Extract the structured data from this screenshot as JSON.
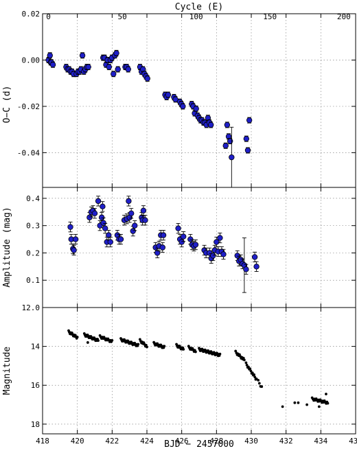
{
  "chart_data": [
    {
      "type": "scatter",
      "panel": "top",
      "ylabel": "O−C (d)",
      "top_axis_label": "Cycle (E)",
      "top_ticks": [
        0,
        50,
        100,
        150,
        200
      ],
      "top_xlim": [
        -4,
        208
      ],
      "ylim": [
        -0.055,
        0.02
      ],
      "yticks": [
        0.02,
        0.0,
        -0.02,
        -0.04
      ],
      "ytick_labels": [
        "0.02",
        "0.00",
        "-0.02",
        "-0.04"
      ],
      "grid": true,
      "marker_color": "#1f1fc8",
      "points": [
        {
          "x": 0,
          "y": 0.0
        },
        {
          "x": 1,
          "y": 0.002
        },
        {
          "x": 1.5,
          "y": -0.001
        },
        {
          "x": 2,
          "y": -0.001
        },
        {
          "x": 3,
          "y": -0.002
        },
        {
          "x": 12,
          "y": -0.003
        },
        {
          "x": 13,
          "y": -0.004
        },
        {
          "x": 14,
          "y": -0.004
        },
        {
          "x": 15,
          "y": -0.005
        },
        {
          "x": 16,
          "y": -0.005
        },
        {
          "x": 17,
          "y": -0.006
        },
        {
          "x": 19,
          "y": -0.006
        },
        {
          "x": 20,
          "y": -0.005
        },
        {
          "x": 21,
          "y": -0.005
        },
        {
          "x": 22,
          "y": -0.004
        },
        {
          "x": 23,
          "y": 0.002
        },
        {
          "x": 24,
          "y": -0.005
        },
        {
          "x": 25,
          "y": -0.004
        },
        {
          "x": 26,
          "y": -0.003
        },
        {
          "x": 27,
          "y": -0.003
        },
        {
          "x": 37,
          "y": 0.001
        },
        {
          "x": 38,
          "y": 0.001
        },
        {
          "x": 39,
          "y": -0.002
        },
        {
          "x": 40,
          "y": 0.0
        },
        {
          "x": 41,
          "y": -0.003
        },
        {
          "x": 42,
          "y": 0.0
        },
        {
          "x": 43,
          "y": 0.001
        },
        {
          "x": 44,
          "y": -0.006
        },
        {
          "x": 45,
          "y": 0.002
        },
        {
          "x": 46,
          "y": 0.003
        },
        {
          "x": 47,
          "y": -0.004
        },
        {
          "x": 52,
          "y": -0.003
        },
        {
          "x": 53,
          "y": -0.003
        },
        {
          "x": 54,
          "y": -0.004
        },
        {
          "x": 62,
          "y": -0.003
        },
        {
          "x": 63,
          "y": -0.005
        },
        {
          "x": 64,
          "y": -0.004
        },
        {
          "x": 65,
          "y": -0.006
        },
        {
          "x": 66,
          "y": -0.007
        },
        {
          "x": 67,
          "y": -0.008
        },
        {
          "x": 79,
          "y": -0.015
        },
        {
          "x": 80,
          "y": -0.016
        },
        {
          "x": 81,
          "y": -0.015
        },
        {
          "x": 85,
          "y": -0.016
        },
        {
          "x": 86,
          "y": -0.017
        },
        {
          "x": 89,
          "y": -0.018
        },
        {
          "x": 90,
          "y": -0.019
        },
        {
          "x": 91,
          "y": -0.02
        },
        {
          "x": 97,
          "y": -0.019
        },
        {
          "x": 98,
          "y": -0.02
        },
        {
          "x": 99,
          "y": -0.023
        },
        {
          "x": 100,
          "y": -0.021
        },
        {
          "x": 101,
          "y": -0.024
        },
        {
          "x": 102,
          "y": -0.025
        },
        {
          "x": 103,
          "y": -0.026
        },
        {
          "x": 104,
          "y": -0.026
        },
        {
          "x": 105,
          "y": -0.027
        },
        {
          "x": 106,
          "y": -0.027
        },
        {
          "x": 107,
          "y": -0.028
        },
        {
          "x": 108,
          "y": -0.025
        },
        {
          "x": 109,
          "y": -0.027
        },
        {
          "x": 110,
          "y": -0.028
        },
        {
          "x": 120,
          "y": -0.037
        },
        {
          "x": 121,
          "y": -0.028
        },
        {
          "x": 122,
          "y": -0.033
        },
        {
          "x": 123,
          "y": -0.035
        },
        {
          "x": 124,
          "y": -0.042,
          "err": 0.013
        },
        {
          "x": 134,
          "y": -0.034
        },
        {
          "x": 135,
          "y": -0.039
        },
        {
          "x": 136,
          "y": -0.026
        }
      ]
    },
    {
      "type": "scatter",
      "panel": "middle",
      "ylabel": "Amplitude (mag)",
      "ylim": [
        0.0,
        0.44
      ],
      "yticks": [
        0.1,
        0.2,
        0.3,
        0.4
      ],
      "ytick_labels": [
        "0.1",
        "0.2",
        "0.3",
        "0.4"
      ],
      "grid": true,
      "marker_color": "#1f1fc8",
      "points": [
        {
          "x": 419.6,
          "y": 0.295
        },
        {
          "x": 419.65,
          "y": 0.25
        },
        {
          "x": 419.75,
          "y": 0.215
        },
        {
          "x": 419.8,
          "y": 0.21
        },
        {
          "x": 419.9,
          "y": 0.25
        },
        {
          "x": 420.7,
          "y": 0.33
        },
        {
          "x": 420.8,
          "y": 0.35
        },
        {
          "x": 420.9,
          "y": 0.355
        },
        {
          "x": 421.0,
          "y": 0.345
        },
        {
          "x": 421.2,
          "y": 0.39
        },
        {
          "x": 421.3,
          "y": 0.3
        },
        {
          "x": 421.4,
          "y": 0.33
        },
        {
          "x": 421.45,
          "y": 0.37
        },
        {
          "x": 421.5,
          "y": 0.31
        },
        {
          "x": 421.6,
          "y": 0.29
        },
        {
          "x": 421.7,
          "y": 0.24
        },
        {
          "x": 421.8,
          "y": 0.265
        },
        {
          "x": 421.9,
          "y": 0.24
        },
        {
          "x": 422.3,
          "y": 0.265
        },
        {
          "x": 422.4,
          "y": 0.25
        },
        {
          "x": 422.5,
          "y": 0.25
        },
        {
          "x": 422.7,
          "y": 0.32
        },
        {
          "x": 422.85,
          "y": 0.325
        },
        {
          "x": 422.95,
          "y": 0.39
        },
        {
          "x": 423.0,
          "y": 0.33
        },
        {
          "x": 423.1,
          "y": 0.345
        },
        {
          "x": 423.2,
          "y": 0.28
        },
        {
          "x": 423.3,
          "y": 0.3
        },
        {
          "x": 423.7,
          "y": 0.33
        },
        {
          "x": 423.75,
          "y": 0.32
        },
        {
          "x": 423.8,
          "y": 0.355
        },
        {
          "x": 423.9,
          "y": 0.32
        },
        {
          "x": 424.5,
          "y": 0.22
        },
        {
          "x": 424.6,
          "y": 0.2
        },
        {
          "x": 424.7,
          "y": 0.225
        },
        {
          "x": 424.8,
          "y": 0.265
        },
        {
          "x": 424.9,
          "y": 0.22
        },
        {
          "x": 424.95,
          "y": 0.265
        },
        {
          "x": 425.8,
          "y": 0.29
        },
        {
          "x": 425.9,
          "y": 0.25
        },
        {
          "x": 426.0,
          "y": 0.24
        },
        {
          "x": 426.1,
          "y": 0.26
        },
        {
          "x": 426.5,
          "y": 0.25
        },
        {
          "x": 426.6,
          "y": 0.23
        },
        {
          "x": 426.7,
          "y": 0.225
        },
        {
          "x": 426.8,
          "y": 0.23
        },
        {
          "x": 427.3,
          "y": 0.21
        },
        {
          "x": 427.4,
          "y": 0.2
        },
        {
          "x": 427.6,
          "y": 0.2
        },
        {
          "x": 427.7,
          "y": 0.18
        },
        {
          "x": 427.8,
          "y": 0.19
        },
        {
          "x": 427.9,
          "y": 0.21
        },
        {
          "x": 428.0,
          "y": 0.24
        },
        {
          "x": 428.1,
          "y": 0.205
        },
        {
          "x": 428.2,
          "y": 0.255
        },
        {
          "x": 428.3,
          "y": 0.205
        },
        {
          "x": 428.4,
          "y": 0.195
        },
        {
          "x": 429.2,
          "y": 0.19
        },
        {
          "x": 429.3,
          "y": 0.17
        },
        {
          "x": 429.4,
          "y": 0.175
        },
        {
          "x": 429.5,
          "y": 0.16
        },
        {
          "x": 429.6,
          "y": 0.155,
          "err": 0.1
        },
        {
          "x": 429.7,
          "y": 0.14
        },
        {
          "x": 430.2,
          "y": 0.185
        },
        {
          "x": 430.3,
          "y": 0.15
        }
      ]
    },
    {
      "type": "scatter",
      "panel": "bottom",
      "xlabel": "BJD − 2457000",
      "ylabel": "Magnitude",
      "xlim": [
        418,
        436
      ],
      "xticks": [
        418,
        420,
        422,
        424,
        426,
        428,
        430,
        432,
        434,
        436
      ],
      "ylim": [
        18.5,
        12.0
      ],
      "yticks": [
        12.0,
        14,
        16,
        18
      ],
      "ytick_labels": [
        "12.0",
        "14",
        "16",
        "18"
      ],
      "grid": true,
      "marker_color": "#000000",
      "segments": [
        {
          "x0": 419.5,
          "x1": 420.0,
          "m0": 13.25,
          "m1": 13.55,
          "n": 14
        },
        {
          "x0": 420.4,
          "x1": 421.2,
          "m0": 13.4,
          "m1": 13.7,
          "n": 22
        },
        {
          "x0": 421.3,
          "x1": 422.0,
          "m0": 13.5,
          "m1": 13.75,
          "n": 16
        },
        {
          "x0": 422.5,
          "x1": 423.5,
          "m0": 13.65,
          "m1": 13.95,
          "n": 26
        },
        {
          "x0": 423.6,
          "x1": 424.0,
          "m0": 13.7,
          "m1": 14.0,
          "n": 10
        },
        {
          "x0": 424.4,
          "x1": 425.0,
          "m0": 13.85,
          "m1": 14.05,
          "n": 16
        },
        {
          "x0": 425.7,
          "x1": 426.1,
          "m0": 13.95,
          "m1": 14.15,
          "n": 12
        },
        {
          "x0": 426.4,
          "x1": 426.8,
          "m0": 14.05,
          "m1": 14.25,
          "n": 10
        },
        {
          "x0": 427.0,
          "x1": 428.2,
          "m0": 14.15,
          "m1": 14.45,
          "n": 36
        },
        {
          "x0": 429.1,
          "x1": 429.6,
          "m0": 14.3,
          "m1": 14.7,
          "n": 12
        },
        {
          "x0": 429.7,
          "x1": 430.3,
          "m0": 14.9,
          "m1": 15.7,
          "n": 14
        },
        {
          "x0": 430.4,
          "x1": 430.6,
          "m0": 15.8,
          "m1": 16.1,
          "n": 4
        },
        {
          "x0": 433.5,
          "x1": 434.4,
          "m0": 16.7,
          "m1": 16.9,
          "n": 20
        }
      ],
      "points": [
        {
          "x": 420.6,
          "y": 13.8
        },
        {
          "x": 431.8,
          "y": 17.1
        },
        {
          "x": 432.5,
          "y": 16.9
        },
        {
          "x": 432.7,
          "y": 16.9
        },
        {
          "x": 433.2,
          "y": 17.0
        },
        {
          "x": 434.3,
          "y": 16.45
        },
        {
          "x": 433.9,
          "y": 17.1
        }
      ]
    }
  ]
}
